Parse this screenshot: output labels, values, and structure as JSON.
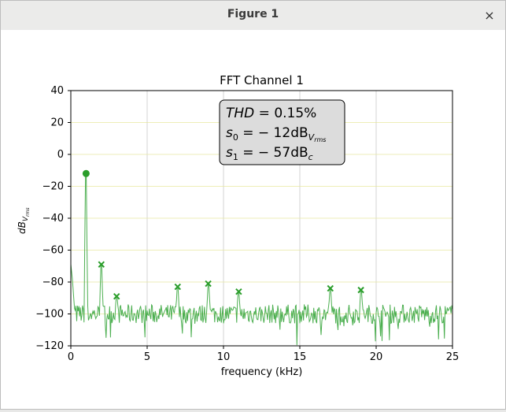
{
  "window": {
    "title": "Figure 1",
    "close_glyph": "×"
  },
  "chart_data": {
    "type": "line",
    "title": "FFT Channel 1",
    "xlabel": "frequency (kHz)",
    "ylabel_main": "dB",
    "ylabel_sub": "V",
    "ylabel_subsub": "rms",
    "xlim": [
      0,
      25
    ],
    "ylim": [
      -120,
      40
    ],
    "xticks": [
      0,
      5,
      10,
      15,
      20,
      25
    ],
    "yticks": [
      40,
      20,
      0,
      -20,
      -40,
      -60,
      -80,
      -100,
      -120
    ],
    "grid": true,
    "line_color": "#4caf50",
    "marker_color": "#2a9d2a",
    "noise_floor": -100,
    "fundamental": {
      "x": 1.0,
      "y": -12
    },
    "harmonics": [
      {
        "x": 2.0,
        "y": -69
      },
      {
        "x": 3.0,
        "y": -89
      },
      {
        "x": 7.0,
        "y": -83
      },
      {
        "x": 9.0,
        "y": -81
      },
      {
        "x": 11.0,
        "y": -86
      },
      {
        "x": 17.0,
        "y": -84
      },
      {
        "x": 19.0,
        "y": -85
      }
    ],
    "annotation": {
      "thd_label": "THD",
      "thd_value": " = 0.15%",
      "s0_label": "s",
      "s0_sub": "0",
      "s0_value": " = − 12dB",
      "s0_unit_sub": "V",
      "s0_unit_subsub": "rms",
      "s1_label": "s",
      "s1_sub": "1",
      "s1_value": " = − 57dB",
      "s1_unit_sub": "c"
    }
  }
}
